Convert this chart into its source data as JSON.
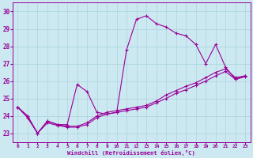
{
  "xlabel": "Windchill (Refroidissement éolien,°C)",
  "bg_color": "#cce8f0",
  "line_color": "#990099",
  "grid_color": "#aad4e0",
  "xlim": [
    -0.5,
    23.5
  ],
  "ylim": [
    22.5,
    30.5
  ],
  "xticks": [
    0,
    1,
    2,
    3,
    4,
    5,
    6,
    7,
    8,
    9,
    10,
    11,
    12,
    13,
    14,
    15,
    16,
    17,
    18,
    19,
    20,
    21,
    22,
    23
  ],
  "yticks": [
    23,
    24,
    25,
    26,
    27,
    28,
    29,
    30
  ],
  "lines": [
    {
      "x": [
        0,
        1,
        2,
        3,
        4,
        5,
        6,
        7,
        8,
        9,
        10,
        11,
        12,
        13,
        14,
        15,
        16,
        17,
        18,
        19,
        20,
        21,
        22,
        23
      ],
      "y": [
        24.5,
        24.0,
        23.0,
        23.7,
        23.5,
        23.5,
        25.8,
        25.4,
        24.2,
        24.1,
        24.2,
        27.8,
        29.55,
        29.75,
        29.3,
        29.1,
        28.75,
        28.6,
        28.1,
        27.0,
        28.1,
        26.8,
        26.1,
        26.3
      ]
    },
    {
      "x": [
        0,
        1,
        2,
        3,
        4,
        5,
        6,
        7,
        8,
        9,
        10,
        11,
        12,
        13,
        14,
        15,
        16,
        17,
        18,
        19,
        20,
        21,
        22,
        23
      ],
      "y": [
        24.5,
        23.9,
        23.0,
        23.7,
        23.5,
        23.4,
        23.4,
        23.6,
        24.0,
        24.2,
        24.3,
        24.4,
        24.5,
        24.6,
        24.85,
        25.2,
        25.45,
        25.7,
        25.9,
        26.2,
        26.5,
        26.7,
        26.2,
        26.3
      ]
    },
    {
      "x": [
        0,
        1,
        2,
        3,
        4,
        5,
        6,
        7,
        8,
        9,
        10,
        11,
        12,
        13,
        14,
        15,
        16,
        17,
        18,
        19,
        20,
        21,
        22,
        23
      ],
      "y": [
        24.5,
        23.9,
        23.0,
        23.6,
        23.45,
        23.35,
        23.35,
        23.5,
        23.9,
        24.1,
        24.2,
        24.3,
        24.4,
        24.5,
        24.75,
        25.0,
        25.3,
        25.5,
        25.75,
        26.0,
        26.3,
        26.55,
        26.1,
        26.25
      ]
    }
  ]
}
